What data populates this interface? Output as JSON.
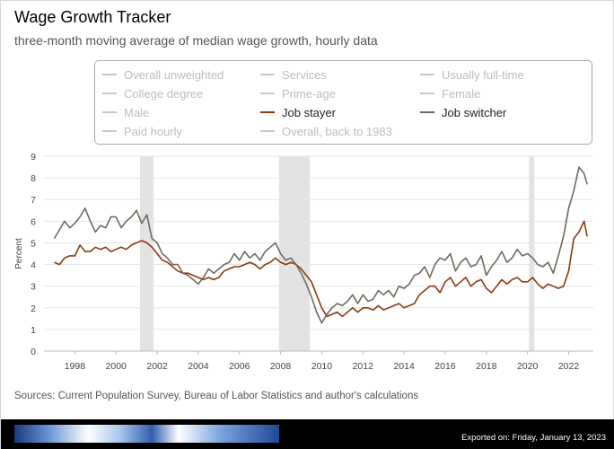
{
  "header": {
    "title": "Wage Growth Tracker",
    "subtitle": "three-month moving average of median wage growth, hourly data"
  },
  "legend": {
    "items": [
      {
        "label": "Overall unweighted",
        "active": false,
        "color": "#c8c8c8"
      },
      {
        "label": "Services",
        "active": false,
        "color": "#c8c8c8"
      },
      {
        "label": "Usually full-time",
        "active": false,
        "color": "#c8c8c8"
      },
      {
        "label": "College degree",
        "active": false,
        "color": "#c8c8c8"
      },
      {
        "label": "Prime-age",
        "active": false,
        "color": "#c8c8c8"
      },
      {
        "label": "Female",
        "active": false,
        "color": "#c8c8c8"
      },
      {
        "label": "Male",
        "active": false,
        "color": "#c8c8c8"
      },
      {
        "label": "Job stayer",
        "active": true,
        "color": "#8b3a12"
      },
      {
        "label": "Job switcher",
        "active": true,
        "color": "#6e6a5e"
      },
      {
        "label": "Paid hourly",
        "active": false,
        "color": "#c8c8c8"
      },
      {
        "label": "Overall, back to 1983",
        "active": false,
        "color": "#c8c8c8"
      }
    ]
  },
  "chart_data": {
    "type": "line",
    "ylabel": "Percent",
    "xlabel": "",
    "ylim": [
      0,
      9
    ],
    "xlim": [
      1996.5,
      2023.2
    ],
    "y_ticks": [
      "0",
      "1",
      "2",
      "3",
      "4",
      "5",
      "6",
      "7",
      "8",
      "9"
    ],
    "x_ticks": [
      "1998",
      "2000",
      "2002",
      "2004",
      "2006",
      "2008",
      "2010",
      "2012",
      "2014",
      "2016",
      "2018",
      "2020",
      "2022"
    ],
    "grid": true,
    "recessions": [
      [
        2001.17,
        2001.83
      ],
      [
        2007.92,
        2009.42
      ],
      [
        2020.08,
        2020.33
      ]
    ],
    "recession_color": "#e3e3e3",
    "series": [
      {
        "name": "Job stayer",
        "color": "#8b3a12",
        "x": [
          1997.0,
          1997.25,
          1997.5,
          1997.75,
          1998.0,
          1998.25,
          1998.5,
          1998.75,
          1999.0,
          1999.25,
          1999.5,
          1999.75,
          2000.0,
          2000.25,
          2000.5,
          2000.75,
          2001.0,
          2001.25,
          2001.5,
          2001.75,
          2002.0,
          2002.25,
          2002.5,
          2002.75,
          2003.0,
          2003.25,
          2003.5,
          2003.75,
          2004.0,
          2004.25,
          2004.5,
          2004.75,
          2005.0,
          2005.25,
          2005.5,
          2005.75,
          2006.0,
          2006.25,
          2006.5,
          2006.75,
          2007.0,
          2007.25,
          2007.5,
          2007.75,
          2008.0,
          2008.25,
          2008.5,
          2008.75,
          2009.0,
          2009.25,
          2009.5,
          2009.75,
          2010.0,
          2010.25,
          2010.5,
          2010.75,
          2011.0,
          2011.25,
          2011.5,
          2011.75,
          2012.0,
          2012.25,
          2012.5,
          2012.75,
          2013.0,
          2013.25,
          2013.5,
          2013.75,
          2014.0,
          2014.25,
          2014.5,
          2014.75,
          2015.0,
          2015.25,
          2015.5,
          2015.75,
          2016.0,
          2016.25,
          2016.5,
          2016.75,
          2017.0,
          2017.25,
          2017.5,
          2017.75,
          2018.0,
          2018.25,
          2018.5,
          2018.75,
          2019.0,
          2019.25,
          2019.5,
          2019.75,
          2020.0,
          2020.25,
          2020.5,
          2020.75,
          2021.0,
          2021.25,
          2021.5,
          2021.75,
          2022.0,
          2022.25,
          2022.5,
          2022.75,
          2022.9
        ],
        "values": [
          4.1,
          4.0,
          4.3,
          4.4,
          4.4,
          4.9,
          4.6,
          4.6,
          4.8,
          4.7,
          4.8,
          4.6,
          4.7,
          4.8,
          4.7,
          4.9,
          5.0,
          5.1,
          5.0,
          4.8,
          4.5,
          4.2,
          4.1,
          3.9,
          3.7,
          3.6,
          3.6,
          3.5,
          3.4,
          3.3,
          3.4,
          3.3,
          3.4,
          3.7,
          3.8,
          3.9,
          3.9,
          4.0,
          4.1,
          4.0,
          3.8,
          4.0,
          4.1,
          4.3,
          4.1,
          4.0,
          4.1,
          4.0,
          3.8,
          3.5,
          3.2,
          2.6,
          2.0,
          1.6,
          1.7,
          1.8,
          1.6,
          1.8,
          2.0,
          1.8,
          2.0,
          2.0,
          1.9,
          2.1,
          1.9,
          2.0,
          2.1,
          2.2,
          2.0,
          2.1,
          2.2,
          2.6,
          2.8,
          3.0,
          3.0,
          2.7,
          3.2,
          3.4,
          3.0,
          3.2,
          3.4,
          3.0,
          3.2,
          3.3,
          2.9,
          2.7,
          3.0,
          3.3,
          3.1,
          3.3,
          3.4,
          3.2,
          3.2,
          3.4,
          3.1,
          2.9,
          3.1,
          3.0,
          2.9,
          3.0,
          3.7,
          5.2,
          5.5,
          6.0,
          5.3
        ]
      },
      {
        "name": "Job switcher",
        "color": "#6e6a5e",
        "x": [
          1997.0,
          1997.25,
          1997.5,
          1997.75,
          1998.0,
          1998.25,
          1998.5,
          1998.75,
          1999.0,
          1999.25,
          1999.5,
          1999.75,
          2000.0,
          2000.25,
          2000.5,
          2000.75,
          2001.0,
          2001.25,
          2001.5,
          2001.75,
          2002.0,
          2002.25,
          2002.5,
          2002.75,
          2003.0,
          2003.25,
          2003.5,
          2003.75,
          2004.0,
          2004.25,
          2004.5,
          2004.75,
          2005.0,
          2005.25,
          2005.5,
          2005.75,
          2006.0,
          2006.25,
          2006.5,
          2006.75,
          2007.0,
          2007.25,
          2007.5,
          2007.75,
          2008.0,
          2008.25,
          2008.5,
          2008.75,
          2009.0,
          2009.25,
          2009.5,
          2009.75,
          2010.0,
          2010.25,
          2010.5,
          2010.75,
          2011.0,
          2011.25,
          2011.5,
          2011.75,
          2012.0,
          2012.25,
          2012.5,
          2012.75,
          2013.0,
          2013.25,
          2013.5,
          2013.75,
          2014.0,
          2014.25,
          2014.5,
          2014.75,
          2015.0,
          2015.25,
          2015.5,
          2015.75,
          2016.0,
          2016.25,
          2016.5,
          2016.75,
          2017.0,
          2017.25,
          2017.5,
          2017.75,
          2018.0,
          2018.25,
          2018.5,
          2018.75,
          2019.0,
          2019.25,
          2019.5,
          2019.75,
          2020.0,
          2020.25,
          2020.5,
          2020.75,
          2021.0,
          2021.25,
          2021.5,
          2021.75,
          2022.0,
          2022.25,
          2022.5,
          2022.75,
          2022.9
        ],
        "values": [
          5.2,
          5.6,
          6.0,
          5.7,
          5.9,
          6.2,
          6.6,
          6.0,
          5.5,
          5.8,
          5.7,
          6.2,
          6.2,
          5.7,
          6.0,
          6.2,
          6.5,
          5.9,
          6.3,
          5.2,
          5.0,
          4.5,
          4.3,
          4.0,
          4.0,
          3.6,
          3.5,
          3.3,
          3.1,
          3.4,
          3.8,
          3.6,
          3.8,
          4.0,
          4.1,
          4.5,
          4.2,
          4.6,
          4.3,
          4.5,
          4.2,
          4.6,
          4.8,
          5.0,
          4.5,
          4.2,
          4.3,
          4.0,
          3.6,
          3.1,
          2.5,
          1.8,
          1.3,
          1.7,
          2.0,
          2.2,
          2.1,
          2.3,
          2.6,
          2.2,
          2.6,
          2.3,
          2.4,
          2.8,
          2.6,
          2.8,
          2.5,
          3.0,
          2.9,
          3.1,
          3.5,
          3.6,
          3.9,
          3.4,
          4.0,
          4.3,
          4.2,
          4.5,
          3.7,
          4.1,
          4.3,
          3.9,
          4.0,
          4.4,
          3.5,
          3.9,
          4.2,
          4.6,
          4.1,
          4.3,
          4.7,
          4.4,
          4.5,
          4.3,
          4.0,
          3.9,
          4.1,
          3.6,
          4.4,
          5.3,
          6.6,
          7.4,
          8.5,
          8.2,
          7.7
        ]
      }
    ]
  },
  "source_note": "Sources: Current Population Survey, Bureau of Labor Statistics and author's calculations",
  "footer": {
    "exported": "Exported on: Friday, January 13, 2023"
  }
}
